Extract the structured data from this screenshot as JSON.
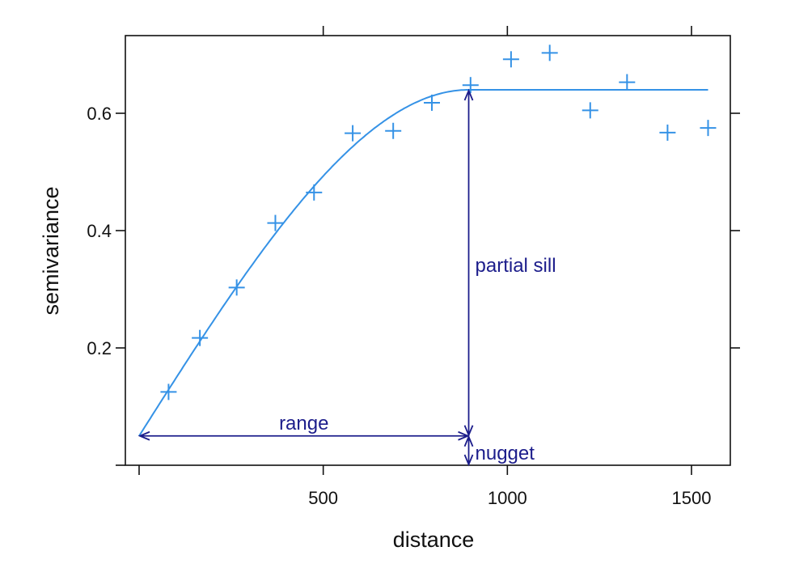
{
  "chart_data": {
    "type": "scatter",
    "title": "",
    "xlabel": "distance",
    "ylabel": "semivariance",
    "xlim": [
      0,
      1600
    ],
    "ylim": [
      0,
      0.73
    ],
    "x_ticks": [
      500,
      1000,
      1500
    ],
    "x_tick_labels": [
      "500",
      "1000",
      "1500"
    ],
    "y_ticks": [
      0.2,
      0.4,
      0.6
    ],
    "y_tick_labels": [
      "0.2",
      "0.4",
      "0.6"
    ],
    "grid": false,
    "colors": {
      "points": "#3592e6",
      "model": "#3592e6",
      "annotation": "#1c1d8b",
      "axis": "#111111"
    },
    "series": [
      {
        "kind": "points",
        "marker": "plus",
        "x": [
          80,
          165,
          265,
          370,
          475,
          580,
          690,
          795,
          900,
          1010,
          1115,
          1225,
          1325,
          1435,
          1545
        ],
        "y": [
          0.125,
          0.217,
          0.303,
          0.413,
          0.465,
          0.566,
          0.57,
          0.618,
          0.648,
          0.692,
          0.703,
          0.605,
          0.653,
          0.567,
          0.575
        ]
      },
      {
        "kind": "model",
        "model": "spherical",
        "nugget": 0.05,
        "partial_sill": 0.59,
        "range": 895,
        "x_end": 1545
      }
    ],
    "annotations": {
      "range_label": "range",
      "partial_sill_label": "partial sill",
      "nugget_label": "nugget"
    }
  }
}
